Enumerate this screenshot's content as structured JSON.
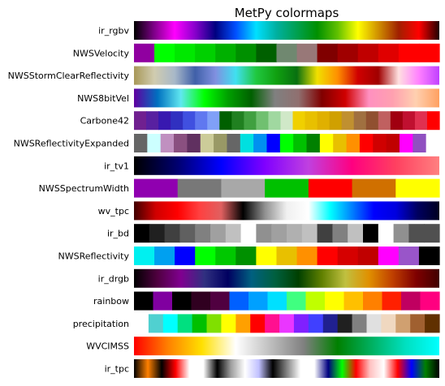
{
  "chart_data": {
    "type": "colormap",
    "title": "MetPy colormaps",
    "colormaps": [
      {
        "name": "ir_rgbv",
        "kind": "gradient",
        "colors": [
          "#000000",
          "#80008a",
          "#ff00ff",
          "#8800cc",
          "#000080",
          "#0050ff",
          "#00e0ff",
          "#00b0a0",
          "#00a050",
          "#009000",
          "#60c000",
          "#ffff00",
          "#d09000",
          "#a02000",
          "#ff0000",
          "#200000"
        ]
      },
      {
        "name": "NWSVelocity",
        "kind": "discrete",
        "colors": [
          "#9000a0",
          "#00ff00",
          "#00e800",
          "#00d000",
          "#00b000",
          "#009000",
          "#006000",
          "#708870",
          "#987878",
          "#800000",
          "#a00000",
          "#c00000",
          "#e00000",
          "#ff0000",
          "#ff0000"
        ]
      },
      {
        "name": "NWSStormClearReflectivity",
        "kind": "gradient",
        "colors": [
          "#a89858",
          "#d0ccb0",
          "#a8b8c8",
          "#4060a8",
          "#8090e0",
          "#40e0f0",
          "#20c840",
          "#10a010",
          "#087010",
          "#f0e000",
          "#ff9000",
          "#d00000",
          "#a00000",
          "#ffe0e0",
          "#ff80ff",
          "#c040ff"
        ]
      },
      {
        "name": "NWS8bitVel",
        "kind": "gradient",
        "colors": [
          "#6000a0",
          "#0070c0",
          "#60e8f0",
          "#00ff00",
          "#00a000",
          "#006000",
          "#808080",
          "#907070",
          "#800000",
          "#d00000",
          "#ff90c0",
          "#ffa0b0",
          "#ffd0b0",
          "#ffa060"
        ]
      },
      {
        "name": "Carbone42",
        "kind": "discrete",
        "colors": [
          "#702090",
          "#5820a0",
          "#3818b0",
          "#3030c0",
          "#4050e0",
          "#6078f0",
          "#80a0f8",
          "#006000",
          "#208020",
          "#40a040",
          "#70c070",
          "#a0d8a0",
          "#d0e8c8",
          "#f0d000",
          "#e8c000",
          "#e0b000",
          "#d0a000",
          "#c09030",
          "#a07040",
          "#905030",
          "#c06060",
          "#a00010",
          "#c01030",
          "#e03050",
          "#ff0000"
        ]
      },
      {
        "name": "NWSReflectivityExpanded",
        "kind": "discrete",
        "colors": [
          "#666666",
          "#ccffff",
          "#c090c0",
          "#8a5080",
          "#603060",
          "#cccc99",
          "#999966",
          "#666666",
          "#00e0e0",
          "#0090f0",
          "#0000ff",
          "#00ff00",
          "#00c000",
          "#008000",
          "#ffff00",
          "#e8c000",
          "#ff9000",
          "#ff0000",
          "#d00000",
          "#c00000",
          "#ff00ff",
          "#9050c0",
          "#ffffff"
        ]
      },
      {
        "name": "ir_tv1",
        "kind": "gradient",
        "colors": [
          "#000000",
          "#000070",
          "#0000ff",
          "#8000ff",
          "#c040e0",
          "#ff0080",
          "#ff4060",
          "#ff8080"
        ]
      },
      {
        "name": "NWSSpectrumWidth",
        "kind": "discrete",
        "colors": [
          "#9000b0",
          "#787878",
          "#a8a8a8",
          "#00c000",
          "#ff0000",
          "#d07000",
          "#ffff00"
        ]
      },
      {
        "name": "wv_tpc",
        "kind": "gradient",
        "colors": [
          "#400000",
          "#d00000",
          "#ff0000",
          "#ff4040",
          "#e06060",
          "#000000",
          "#909090",
          "#f0f0f0",
          "#ffffff",
          "#00ffff",
          "#0080ff",
          "#0000ff",
          "#0000e0",
          "#000060",
          "#000020"
        ]
      },
      {
        "name": "ir_bd",
        "kind": "discrete",
        "colors": [
          "#000000",
          "#202020",
          "#404040",
          "#606060",
          "#808080",
          "#a0a0a0",
          "#c0c0c0",
          "#ffffff",
          "#909090",
          "#a0a0a0",
          "#b0b0b0",
          "#c0c0c0",
          "#404040",
          "#808080",
          "#c0c0c0",
          "#000000",
          "#ffffff",
          "#909090",
          "#505050",
          "#505050"
        ]
      },
      {
        "name": "NWSReflectivity",
        "kind": "discrete",
        "colors": [
          "#00f0f0",
          "#00a0f0",
          "#0000ff",
          "#00ff00",
          "#00c800",
          "#009000",
          "#ffff00",
          "#e8c000",
          "#ff9000",
          "#ff0000",
          "#d60000",
          "#c00000",
          "#ff00ff",
          "#9955c9",
          "#000000"
        ]
      },
      {
        "name": "ir_drgb",
        "kind": "gradient",
        "colors": [
          "#000000",
          "#500040",
          "#800090",
          "#303080",
          "#000060",
          "#006080",
          "#006040",
          "#004000",
          "#608000",
          "#c0c040",
          "#e09000",
          "#c04000",
          "#800000",
          "#400000"
        ]
      },
      {
        "name": "rainbow",
        "kind": "discrete",
        "colors": [
          "#000000",
          "#8000a0",
          "#000000",
          "#300020",
          "#500040",
          "#0060ff",
          "#00a0ff",
          "#00e0ff",
          "#40ff80",
          "#c0ff00",
          "#ffff00",
          "#ffc000",
          "#ff8000",
          "#ff2000",
          "#c00060",
          "#ff0080"
        ]
      },
      {
        "name": "precipitation",
        "kind": "discrete",
        "colors": [
          "#ffffff",
          "#50d0d0",
          "#00ffff",
          "#00e080",
          "#00c000",
          "#80e000",
          "#ffff00",
          "#ffa000",
          "#ff0000",
          "#ff1090",
          "#ea36ff",
          "#8020ff",
          "#4040ff",
          "#202090",
          "#202020",
          "#808080",
          "#e0e0e0",
          "#f0d8c0",
          "#d0a070",
          "#a06030",
          "#603000"
        ]
      },
      {
        "name": "WVCIMSS",
        "kind": "gradient",
        "colors": [
          "#ff0000",
          "#ff8000",
          "#ffe000",
          "#ffffff",
          "#c0c0c0",
          "#808080",
          "#008000",
          "#00b060",
          "#00e0c0",
          "#00ffff"
        ]
      },
      {
        "name": "ir_tpc",
        "kind": "gradient",
        "colors": [
          "#000000",
          "#ff8000",
          "#000000",
          "#ff0000",
          "#ffffff",
          "#ffffff",
          "#000000",
          "#a0a0a0",
          "#ffffff",
          "#c0c0ff",
          "#000000",
          "#808080",
          "#ffffff",
          "#ffffff",
          "#000080",
          "#00ff00",
          "#ff0000",
          "#ffc0c0",
          "#ffffff",
          "#ff0000",
          "#0000ff",
          "#008000",
          "#000000"
        ]
      }
    ]
  }
}
